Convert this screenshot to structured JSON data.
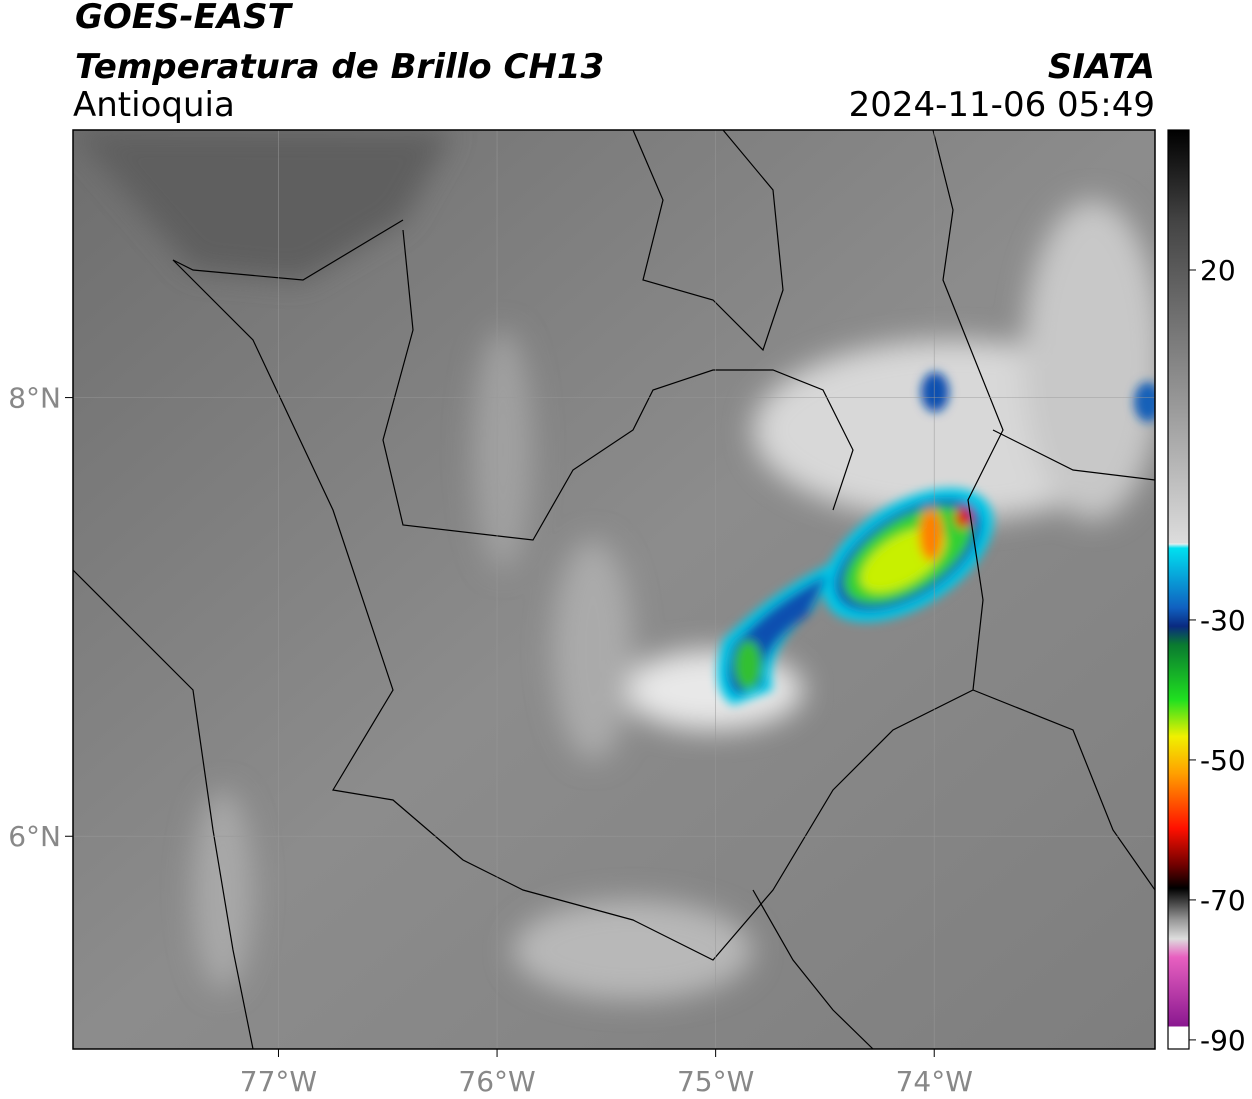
{
  "header": {
    "title": "GOES-EAST",
    "subtitle": "Temperatura de Brillo CH13",
    "region": "Antioquia",
    "source": "SIATA",
    "datetime": "2024-11-06 05:49"
  },
  "map": {
    "lonlim": [
      -77.94,
      -72.99
    ],
    "latlim": [
      5.03,
      9.22
    ],
    "grid": true,
    "lonticks": [
      {
        "value": -77,
        "label": "77°W"
      },
      {
        "value": -76,
        "label": "76°W"
      },
      {
        "value": -75,
        "label": "75°W"
      },
      {
        "value": -74,
        "label": "74°W"
      }
    ],
    "latticks": [
      {
        "value": 6,
        "label": "6°N"
      },
      {
        "value": 8,
        "label": "8°N"
      }
    ]
  },
  "colorbar": {
    "lim": [
      -91.3,
      40
    ],
    "ticks": [
      20,
      -30,
      -50,
      -70,
      -90
    ]
  }
}
